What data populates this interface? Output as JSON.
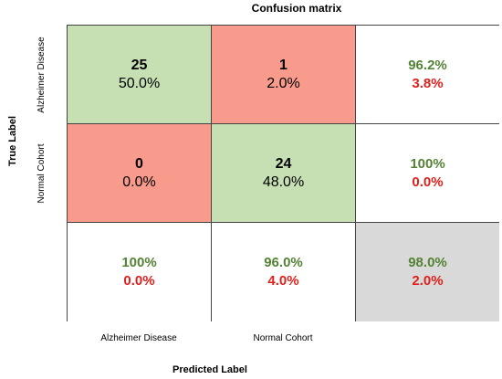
{
  "chart_data": {
    "type": "heatmap",
    "title": "Confusion matrix",
    "xlabel": "Predicted Label",
    "ylabel": "True Label",
    "row_labels": [
      "Alzheimer Disease",
      "Normal Cohort"
    ],
    "col_labels": [
      "Alzheimer Disease",
      "Normal Cohort"
    ],
    "matrix": [
      {
        "count": "25",
        "pct": "50.0%"
      },
      {
        "count": "1",
        "pct": "2.0%"
      },
      {
        "count": "0",
        "pct": "0.0%"
      },
      {
        "count": "24",
        "pct": "48.0%"
      }
    ],
    "row_summary": [
      {
        "correct": "96.2%",
        "incorrect": "3.8%"
      },
      {
        "correct": "100%",
        "incorrect": "0.0%"
      }
    ],
    "col_summary": [
      {
        "correct": "100%",
        "incorrect": "0.0%"
      },
      {
        "correct": "96.0%",
        "incorrect": "4.0%"
      }
    ],
    "overall": {
      "correct": "98.0%",
      "incorrect": "2.0%"
    },
    "colors": {
      "correct_cell": "#c6e0b4",
      "incorrect_cell": "#f89a8c",
      "overall_cell": "#d9d9d9",
      "correct_text": "#548235",
      "incorrect_text": "#e0201c"
    }
  }
}
